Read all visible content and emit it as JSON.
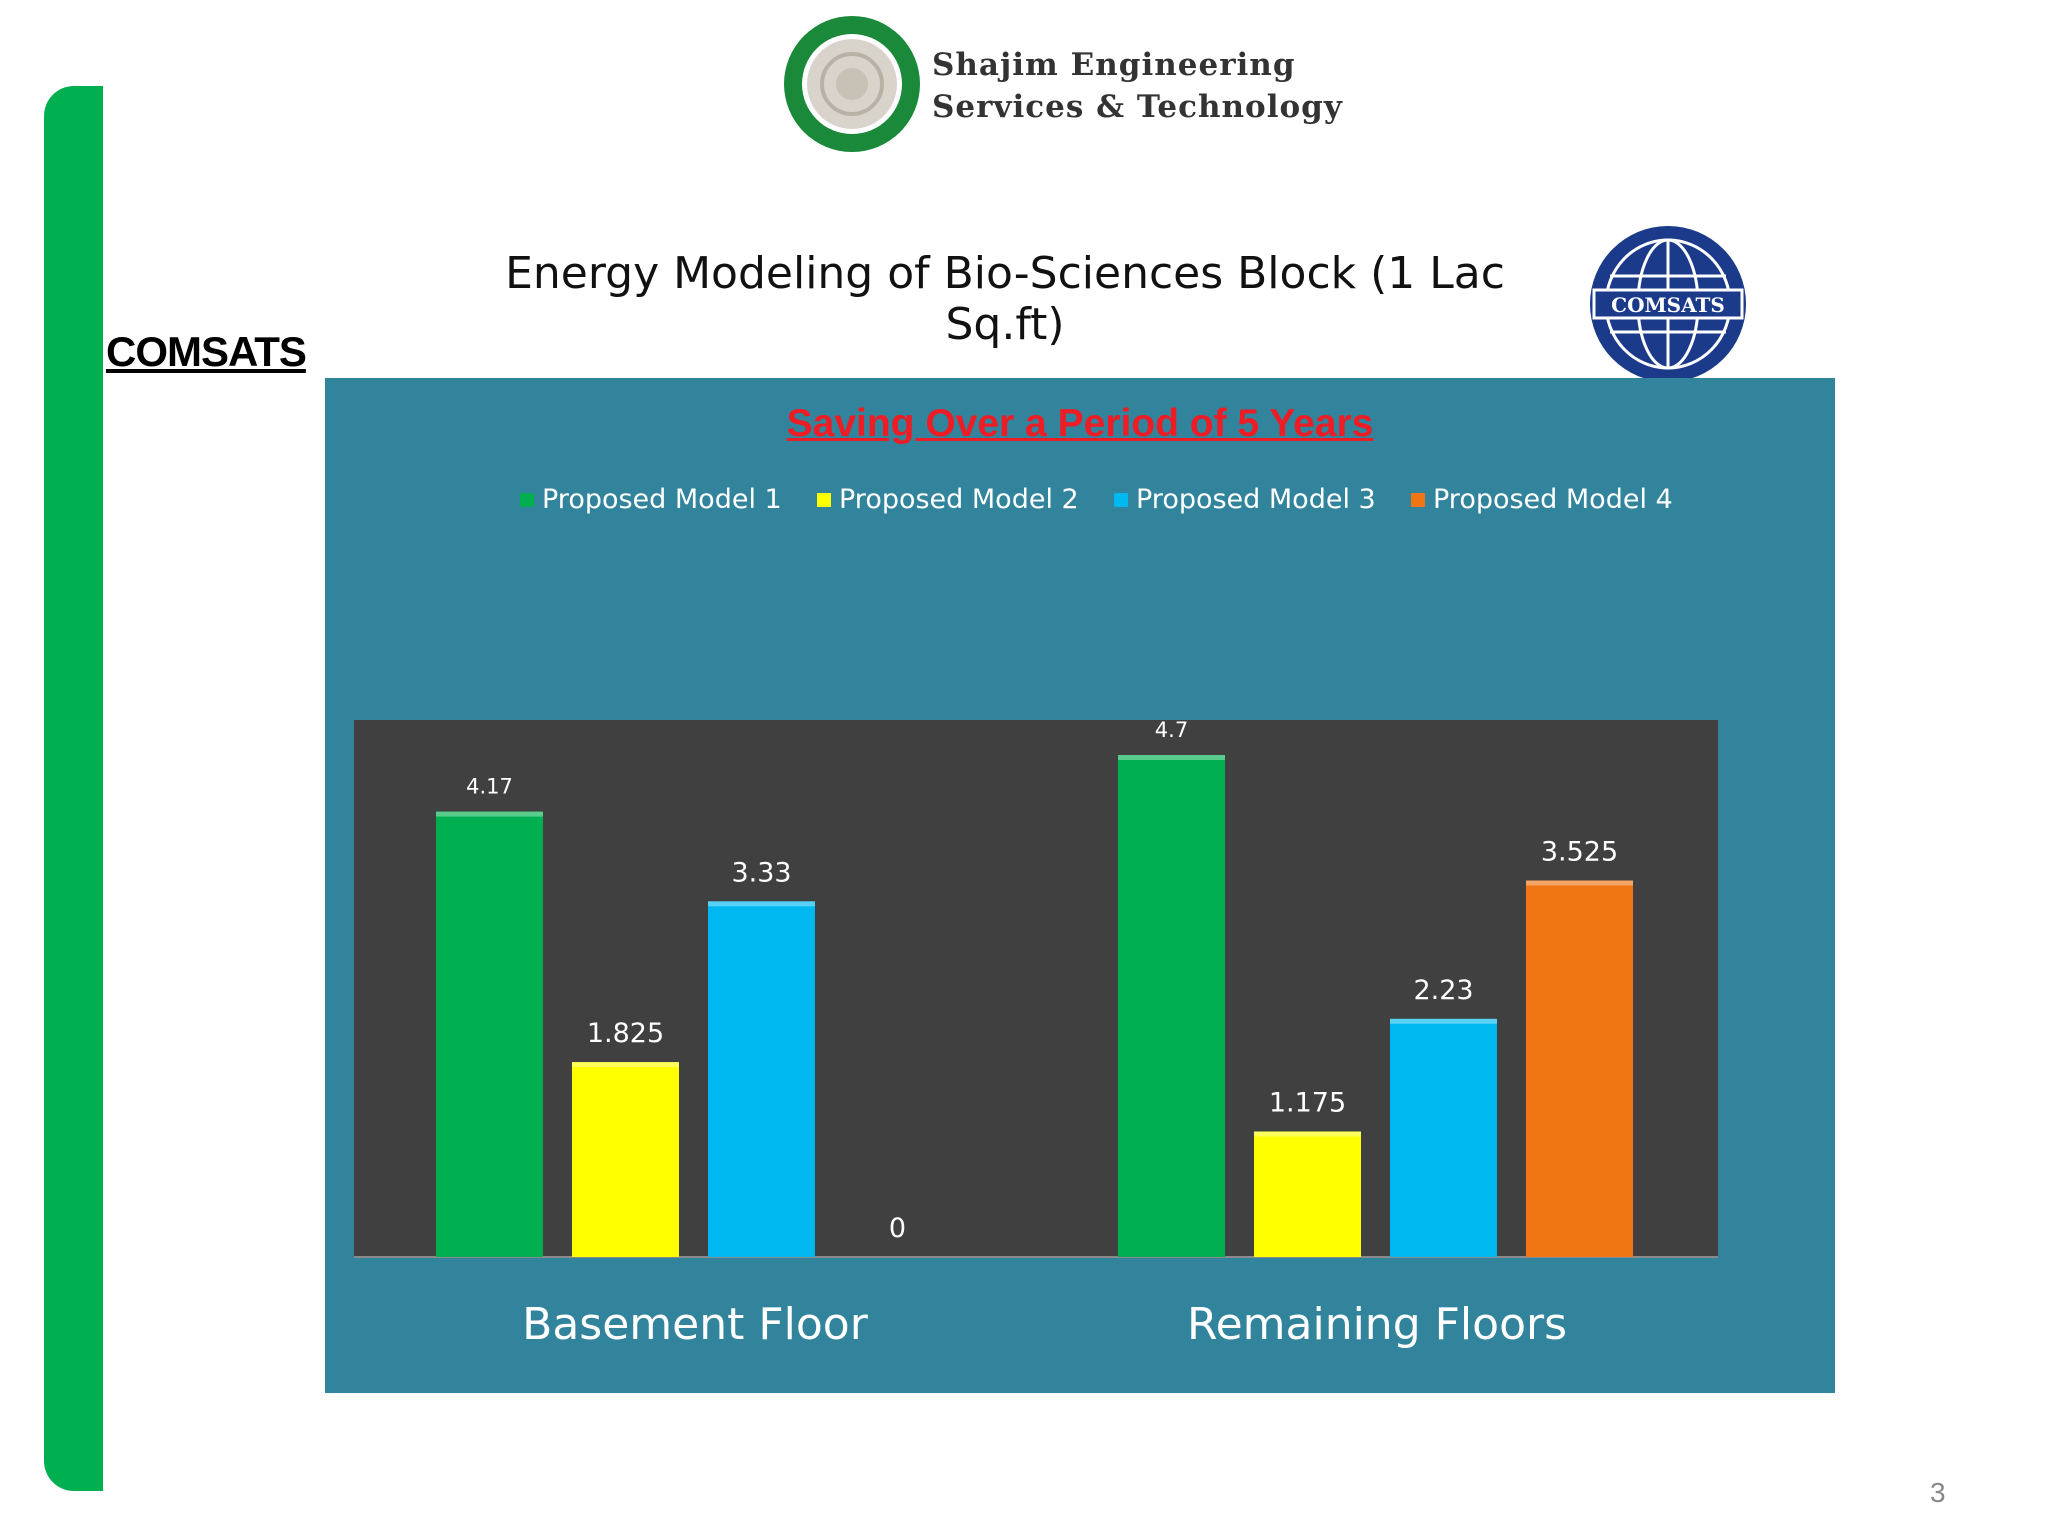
{
  "header": {
    "brand_line1": "Shajim Engineering",
    "brand_line2": "Services & Technology",
    "brand_seal_text": "Shajim Engineering Services & Technology",
    "slide_title": "Energy Modeling of Bio-Sciences Block (1 Lac Sq.ft)",
    "comsats_logo_text": "COMSATS",
    "left_label": "COMSATS"
  },
  "colors": {
    "accent_green": "#00b050",
    "panel": "#32849c",
    "plot_area": "#404040",
    "title_red": "#ee1c24"
  },
  "page_number": "3",
  "chart_data": {
    "type": "bar",
    "title": "Saving Over a Period of 5 Years",
    "categories": [
      "Basement Floor",
      "Remaining Floors"
    ],
    "series": [
      {
        "name": "Proposed Model 1",
        "color": "#00b050",
        "values": [
          4.17,
          4.7
        ],
        "labels": [
          "4.17",
          "4.7"
        ]
      },
      {
        "name": "Proposed Model 2",
        "color": "#ffff00",
        "values": [
          1.825,
          1.175
        ],
        "labels": [
          "1.825",
          "1.175"
        ]
      },
      {
        "name": "Proposed Model 3",
        "color": "#00b8f0",
        "values": [
          3.33,
          2.23
        ],
        "labels": [
          "3.33",
          "2.23"
        ]
      },
      {
        "name": "Proposed Model 4",
        "color": "#f07513",
        "values": [
          0,
          3.525
        ],
        "labels": [
          "0",
          "3.525"
        ]
      }
    ],
    "ylim": [
      0,
      5
    ],
    "xlabel": "",
    "ylabel": "",
    "grid": false,
    "legend_position": "top"
  }
}
